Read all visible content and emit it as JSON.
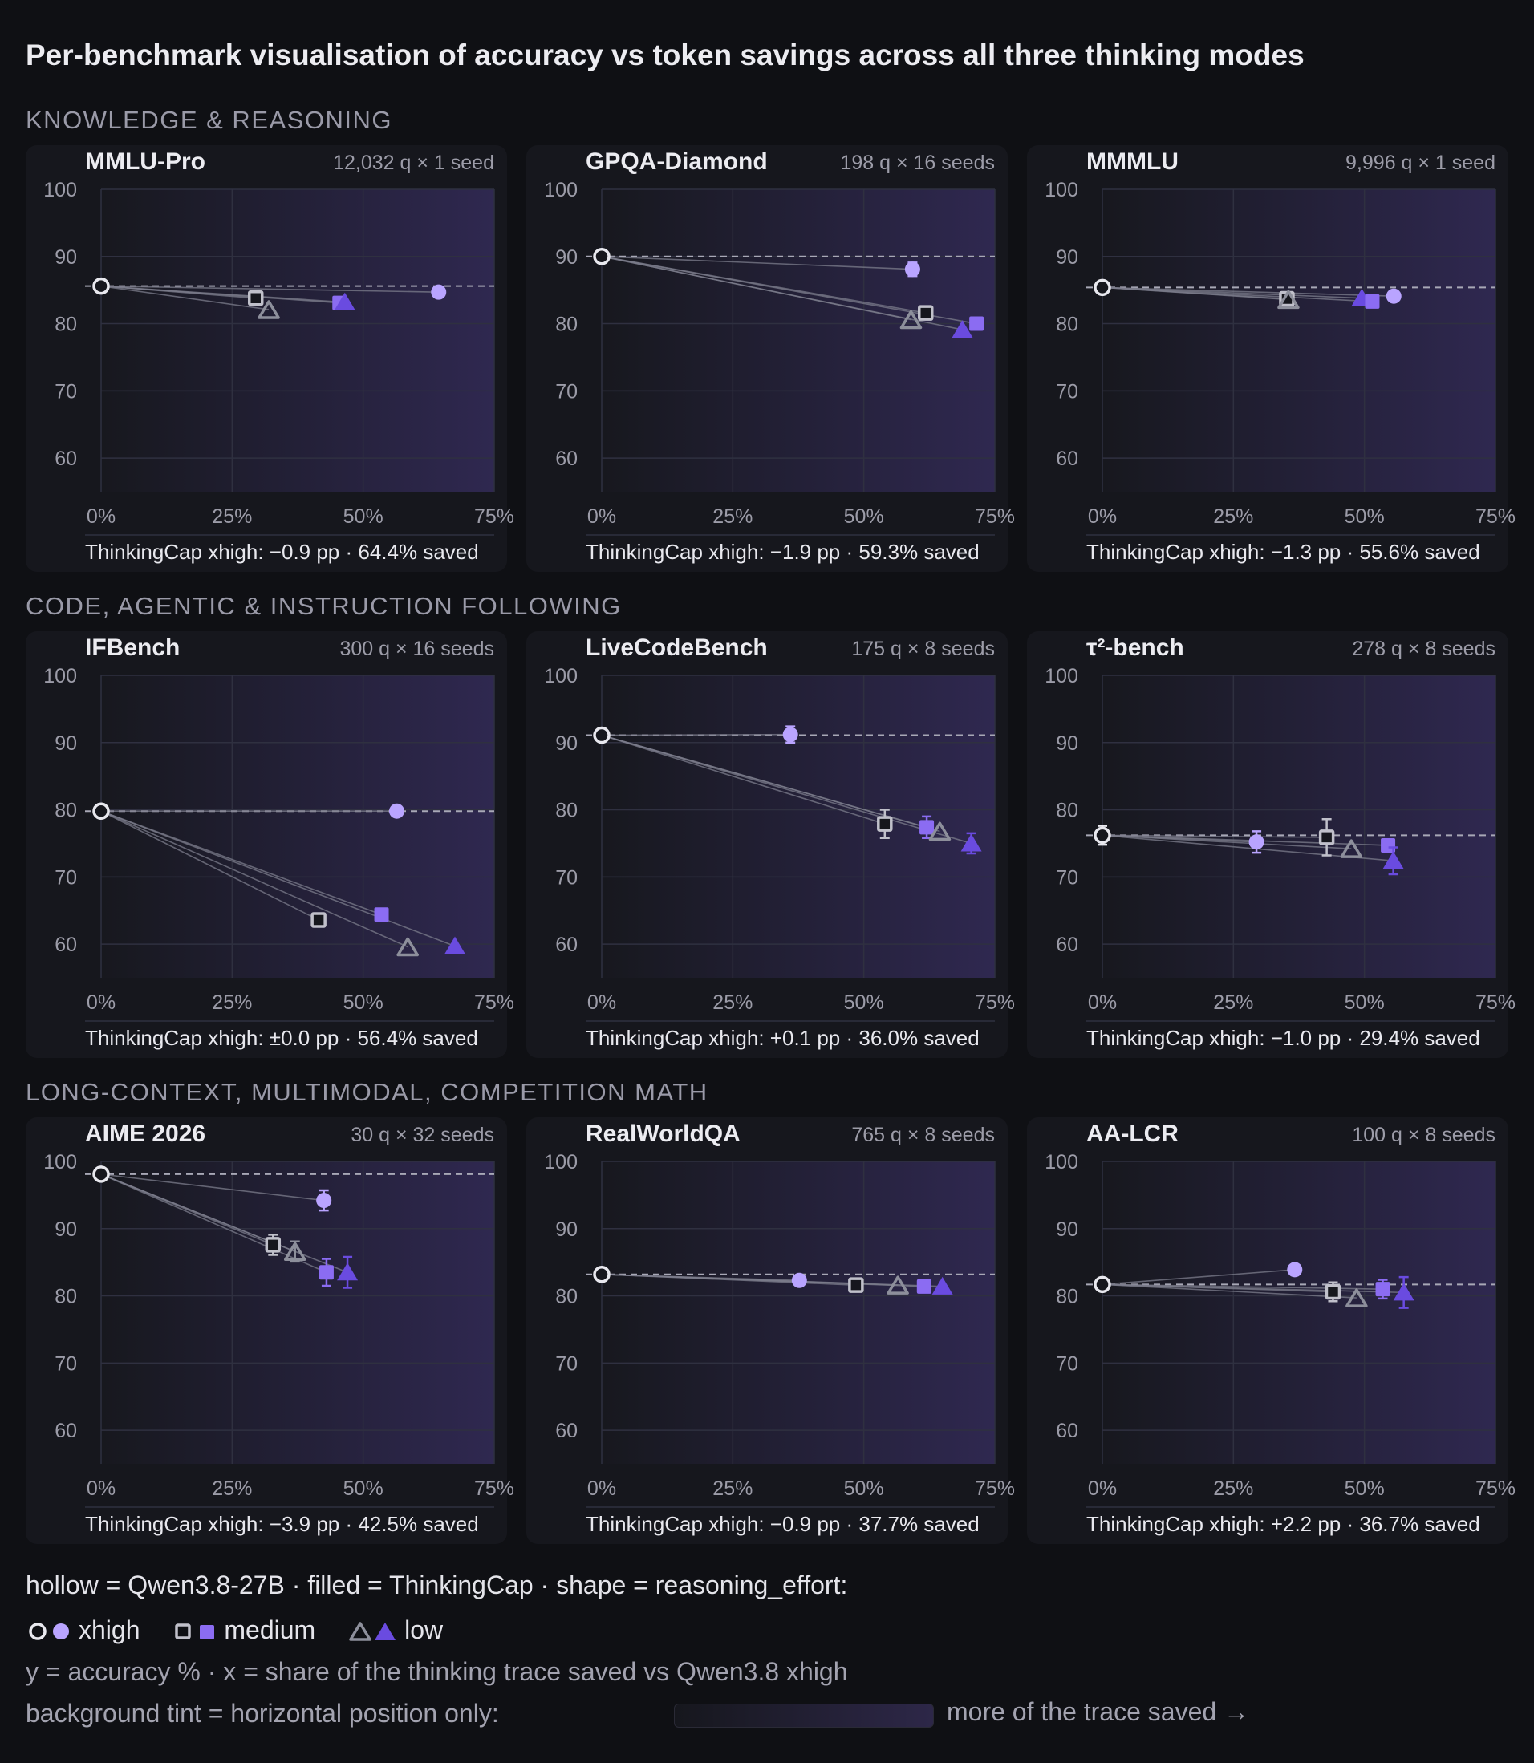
{
  "title": "Per-benchmark visualisation of accuracy vs token savings across all three thinking modes",
  "sections": [
    "KNOWLEDGE & REASONING",
    "CODE, AGENTIC & INSTRUCTION FOLLOWING",
    "LONG-CONTEXT, MULTIMODAL, COMPETITION MATH"
  ],
  "legend": {
    "line1": "hollow = Qwen3.8-27B · filled = ThinkingCap · shape = reasoning_effort:",
    "items": [
      "xhigh",
      "medium",
      "low"
    ],
    "line3": "y = accuracy % · x = share of the thinking trace saved vs Qwen3.8 xhigh",
    "line4": "background tint = horizontal position only:",
    "more": "more of the trace saved →"
  },
  "colors": {
    "background": "#0f1014",
    "card": "#16171d",
    "hollow": "#e8e8ee",
    "hollow_low": "#8d8f9b",
    "xhigh": "#b9a4ff",
    "medium": "#8b6cf2",
    "low": "#6a4be0",
    "tint_end": "#2f2850"
  },
  "chart_data": [
    {
      "type": "scatter",
      "title": "MMLU-Pro",
      "meta": "12,032 q × 1 seed",
      "footer": "ThinkingCap xhigh: −0.9 pp · 64.4% saved",
      "xticks": [
        "0%",
        "25%",
        "50%",
        "75%"
      ],
      "yticks": [
        "100",
        "90",
        "80",
        "70",
        "60"
      ],
      "xlim": [
        0,
        75
      ],
      "ylim": [
        55,
        100
      ],
      "baseline": 85.6,
      "points": [
        {
          "model": "Qwen3.8-27B",
          "effort": "xhigh",
          "x": 0,
          "y": 85.6
        },
        {
          "model": "Qwen3.8-27B",
          "effort": "medium",
          "x": 29.5,
          "y": 83.8
        },
        {
          "model": "Qwen3.8-27B",
          "effort": "low",
          "x": 32,
          "y": 82.1
        },
        {
          "model": "ThinkingCap",
          "effort": "medium",
          "x": 45.5,
          "y": 83.1
        },
        {
          "model": "ThinkingCap",
          "effort": "low",
          "x": 46.5,
          "y": 83.2
        },
        {
          "model": "ThinkingCap",
          "effort": "xhigh",
          "x": 64.4,
          "y": 84.7
        }
      ]
    },
    {
      "type": "scatter",
      "title": "GPQA-Diamond",
      "meta": "198 q × 16 seeds",
      "footer": "ThinkingCap xhigh: −1.9 pp · 59.3% saved",
      "xticks": [
        "0%",
        "25%",
        "50%",
        "75%"
      ],
      "yticks": [
        "100",
        "90",
        "80",
        "70",
        "60"
      ],
      "xlim": [
        0,
        75
      ],
      "ylim": [
        55,
        100
      ],
      "baseline": 90,
      "points": [
        {
          "model": "Qwen3.8-27B",
          "effort": "xhigh",
          "x": 0,
          "y": 90.0
        },
        {
          "model": "ThinkingCap",
          "effort": "xhigh",
          "x": 59.3,
          "y": 88.1,
          "err": 1.0
        },
        {
          "model": "Qwen3.8-27B",
          "effort": "low",
          "x": 59.0,
          "y": 80.6
        },
        {
          "model": "Qwen3.8-27B",
          "effort": "medium",
          "x": 61.8,
          "y": 81.6
        },
        {
          "model": "ThinkingCap",
          "effort": "low",
          "x": 68.8,
          "y": 79.1
        },
        {
          "model": "ThinkingCap",
          "effort": "medium",
          "x": 71.5,
          "y": 80.0
        }
      ]
    },
    {
      "type": "scatter",
      "title": "MMMLU",
      "meta": "9,996 q × 1 seed",
      "footer": "ThinkingCap xhigh: −1.3 pp · 55.6% saved",
      "xticks": [
        "0%",
        "25%",
        "50%",
        "75%"
      ],
      "yticks": [
        "100",
        "90",
        "80",
        "70",
        "60"
      ],
      "xlim": [
        0,
        75
      ],
      "ylim": [
        55,
        100
      ],
      "baseline": 85.4,
      "points": [
        {
          "model": "Qwen3.8-27B",
          "effort": "xhigh",
          "x": 0,
          "y": 85.4
        },
        {
          "model": "Qwen3.8-27B",
          "effort": "medium",
          "x": 35.2,
          "y": 83.7
        },
        {
          "model": "Qwen3.8-27B",
          "effort": "low",
          "x": 35.5,
          "y": 83.6
        },
        {
          "model": "ThinkingCap",
          "effort": "low",
          "x": 49.5,
          "y": 83.8
        },
        {
          "model": "ThinkingCap",
          "effort": "medium",
          "x": 51.5,
          "y": 83.3
        },
        {
          "model": "ThinkingCap",
          "effort": "xhigh",
          "x": 55.6,
          "y": 84.1
        }
      ]
    },
    {
      "type": "scatter",
      "title": "IFBench",
      "meta": "300 q × 16 seeds",
      "footer": "ThinkingCap xhigh: ±0.0 pp · 56.4% saved",
      "xticks": [
        "0%",
        "25%",
        "50%",
        "75%"
      ],
      "yticks": [
        "100",
        "90",
        "80",
        "70",
        "60"
      ],
      "xlim": [
        0,
        75
      ],
      "ylim": [
        55,
        100
      ],
      "baseline": 79.8,
      "points": [
        {
          "model": "Qwen3.8-27B",
          "effort": "xhigh",
          "x": 0,
          "y": 79.8
        },
        {
          "model": "ThinkingCap",
          "effort": "xhigh",
          "x": 56.4,
          "y": 79.8
        },
        {
          "model": "Qwen3.8-27B",
          "effort": "medium",
          "x": 41.5,
          "y": 63.6
        },
        {
          "model": "ThinkingCap",
          "effort": "medium",
          "x": 53.5,
          "y": 64.4
        },
        {
          "model": "Qwen3.8-27B",
          "effort": "low",
          "x": 58.5,
          "y": 59.6
        },
        {
          "model": "ThinkingCap",
          "effort": "low",
          "x": 67.5,
          "y": 59.7
        }
      ]
    },
    {
      "type": "scatter",
      "title": "LiveCodeBench",
      "meta": "175 q × 8 seeds",
      "footer": "ThinkingCap xhigh: +0.1 pp · 36.0% saved",
      "xticks": [
        "0%",
        "25%",
        "50%",
        "75%"
      ],
      "yticks": [
        "100",
        "90",
        "80",
        "70",
        "60"
      ],
      "xlim": [
        0,
        75
      ],
      "ylim": [
        55,
        100
      ],
      "baseline": 91.1,
      "points": [
        {
          "model": "Qwen3.8-27B",
          "effort": "xhigh",
          "x": 0,
          "y": 91.1
        },
        {
          "model": "ThinkingCap",
          "effort": "xhigh",
          "x": 36.0,
          "y": 91.2,
          "err": 1.2
        },
        {
          "model": "Qwen3.8-27B",
          "effort": "medium",
          "x": 54.0,
          "y": 77.9,
          "err": 2.1
        },
        {
          "model": "ThinkingCap",
          "effort": "medium",
          "x": 62.0,
          "y": 77.4,
          "err": 1.6
        },
        {
          "model": "Qwen3.8-27B",
          "effort": "low",
          "x": 64.5,
          "y": 76.8
        },
        {
          "model": "ThinkingCap",
          "effort": "low",
          "x": 70.5,
          "y": 75.0,
          "err": 1.5
        }
      ]
    },
    {
      "type": "scatter",
      "title": "τ²-bench",
      "meta": "278 q × 8 seeds",
      "footer": "ThinkingCap xhigh: −1.0 pp · 29.4% saved",
      "xticks": [
        "0%",
        "25%",
        "50%",
        "75%"
      ],
      "yticks": [
        "100",
        "90",
        "80",
        "70",
        "60"
      ],
      "xlim": [
        0,
        75
      ],
      "ylim": [
        55,
        100
      ],
      "baseline": 76.2,
      "points": [
        {
          "model": "Qwen3.8-27B",
          "effort": "xhigh",
          "x": 0,
          "y": 76.2,
          "err": 1.4
        },
        {
          "model": "ThinkingCap",
          "effort": "xhigh",
          "x": 29.4,
          "y": 75.2,
          "err": 1.6
        },
        {
          "model": "Qwen3.8-27B",
          "effort": "medium",
          "x": 42.8,
          "y": 75.9,
          "err": 2.7
        },
        {
          "model": "Qwen3.8-27B",
          "effort": "low",
          "x": 47.5,
          "y": 74.2
        },
        {
          "model": "ThinkingCap",
          "effort": "medium",
          "x": 54.5,
          "y": 74.7
        },
        {
          "model": "ThinkingCap",
          "effort": "low",
          "x": 55.5,
          "y": 72.4,
          "err": 2.0
        }
      ]
    },
    {
      "type": "scatter",
      "title": "AIME 2026",
      "meta": "30 q × 32 seeds",
      "footer": "ThinkingCap xhigh: −3.9 pp · 42.5% saved",
      "xticks": [
        "0%",
        "25%",
        "50%",
        "75%"
      ],
      "yticks": [
        "100",
        "90",
        "80",
        "70",
        "60"
      ],
      "xlim": [
        0,
        75
      ],
      "ylim": [
        55,
        100
      ],
      "baseline": 98.1,
      "points": [
        {
          "model": "Qwen3.8-27B",
          "effort": "xhigh",
          "x": 0,
          "y": 98.1
        },
        {
          "model": "ThinkingCap",
          "effort": "xhigh",
          "x": 42.5,
          "y": 94.2,
          "err": 1.5
        },
        {
          "model": "Qwen3.8-27B",
          "effort": "medium",
          "x": 32.8,
          "y": 87.6,
          "err": 1.5
        },
        {
          "model": "Qwen3.8-27B",
          "effort": "low",
          "x": 37.0,
          "y": 86.6,
          "err": 1.5
        },
        {
          "model": "ThinkingCap",
          "effort": "medium",
          "x": 43.0,
          "y": 83.5,
          "err": 2.0
        },
        {
          "model": "ThinkingCap",
          "effort": "low",
          "x": 47.0,
          "y": 83.5,
          "err": 2.3
        }
      ]
    },
    {
      "type": "scatter",
      "title": "RealWorldQA",
      "meta": "765 q × 8 seeds",
      "footer": "ThinkingCap xhigh: −0.9 pp · 37.7% saved",
      "xticks": [
        "0%",
        "25%",
        "50%",
        "75%"
      ],
      "yticks": [
        "100",
        "90",
        "80",
        "70",
        "60"
      ],
      "xlim": [
        0,
        75
      ],
      "ylim": [
        55,
        100
      ],
      "baseline": 83.2,
      "points": [
        {
          "model": "Qwen3.8-27B",
          "effort": "xhigh",
          "x": 0,
          "y": 83.2
        },
        {
          "model": "ThinkingCap",
          "effort": "xhigh",
          "x": 37.7,
          "y": 82.3
        },
        {
          "model": "Qwen3.8-27B",
          "effort": "medium",
          "x": 48.5,
          "y": 81.6
        },
        {
          "model": "Qwen3.8-27B",
          "effort": "low",
          "x": 56.5,
          "y": 81.6
        },
        {
          "model": "ThinkingCap",
          "effort": "medium",
          "x": 61.5,
          "y": 81.4
        },
        {
          "model": "ThinkingCap",
          "effort": "low",
          "x": 65.0,
          "y": 81.4
        }
      ]
    },
    {
      "type": "scatter",
      "title": "AA-LCR",
      "meta": "100 q × 8 seeds",
      "footer": "ThinkingCap xhigh: +2.2 pp · 36.7% saved",
      "xticks": [
        "0%",
        "25%",
        "50%",
        "75%"
      ],
      "yticks": [
        "100",
        "90",
        "80",
        "70",
        "60"
      ],
      "xlim": [
        0,
        75
      ],
      "ylim": [
        55,
        100
      ],
      "baseline": 81.7,
      "points": [
        {
          "model": "Qwen3.8-27B",
          "effort": "xhigh",
          "x": 0,
          "y": 81.7
        },
        {
          "model": "ThinkingCap",
          "effort": "xhigh",
          "x": 36.7,
          "y": 83.9
        },
        {
          "model": "Qwen3.8-27B",
          "effort": "medium",
          "x": 44.0,
          "y": 80.6,
          "err": 1.4
        },
        {
          "model": "Qwen3.8-27B",
          "effort": "low",
          "x": 48.5,
          "y": 79.7
        },
        {
          "model": "ThinkingCap",
          "effort": "medium",
          "x": 53.5,
          "y": 81.0,
          "err": 1.4
        },
        {
          "model": "ThinkingCap",
          "effort": "low",
          "x": 57.5,
          "y": 80.5,
          "err": 2.3
        }
      ]
    }
  ]
}
